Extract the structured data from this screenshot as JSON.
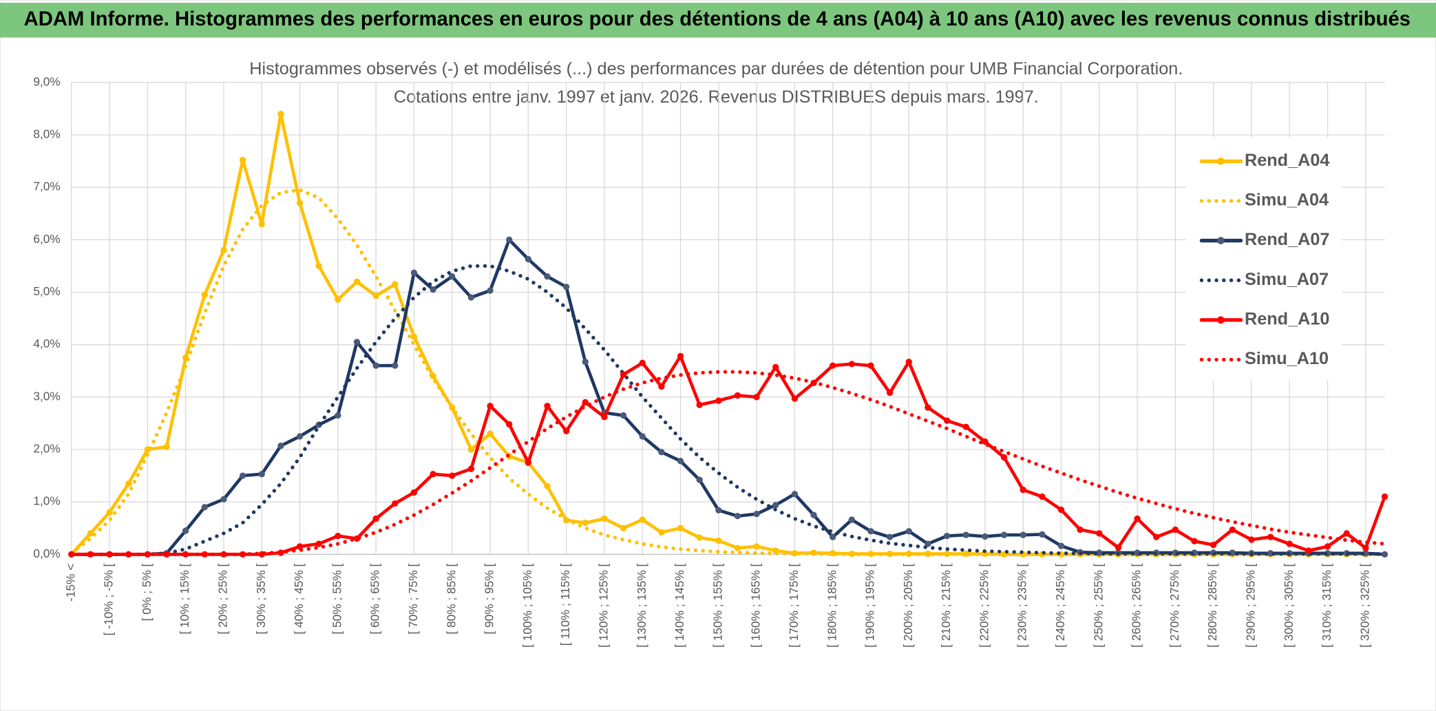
{
  "header": {
    "title": "ADAM Informe. Histogrammes des performances en euros pour des détentions de 4 ans (A04) à 10 ans (A10) avec les revenus connus distribués"
  },
  "chart_data": {
    "type": "line",
    "title": "Histogrammes observés (-) et modélisés (...) des performances par durées de détention pour UMB Financial Corporation.",
    "subtitle": "Cotations entre janv. 1997 et janv. 2026.  Revenus DISTRIBUES depuis mars. 1997.",
    "categories": [
      "-15% <",
      null,
      "[ -10% ; -5% [",
      null,
      "[ 0% ; 5% [",
      null,
      "[ 10% ; 15% [",
      null,
      "[ 20% ; 25% [",
      null,
      "[ 30% ; 35% [",
      null,
      "[ 40% ; 45% [",
      null,
      "[ 50% ; 55% [",
      null,
      "[ 60% ; 65% [",
      null,
      "[ 70% ; 75% [",
      null,
      "[ 80% ; 85% [",
      null,
      "[ 90% ; 95% [",
      null,
      "[ 100% ; 105% [",
      null,
      "[ 110% ; 115% [",
      null,
      "[ 120% ; 125% [",
      null,
      "[ 130% ; 135% [",
      null,
      "[ 140% ; 145% [",
      null,
      "[ 150% ; 155% [",
      null,
      "[ 160% ; 165% [",
      null,
      "[ 170% ; 175% [",
      null,
      "[ 180% ; 185% [",
      null,
      "[ 190% ; 195% [",
      null,
      "[ 200% ; 205% [",
      null,
      "[ 210% ; 215% [",
      null,
      "[ 220% ; 225% [",
      null,
      "[ 230% ; 235% [",
      null,
      "[ 240% ; 245% [",
      null,
      "[ 250% ; 255% [",
      null,
      "[ 260% ; 265% [",
      null,
      "[ 270% ; 275% [",
      null,
      "[ 280% ; 285% [",
      null,
      "[ 290% ; 295% [",
      null,
      "[ 300% ; 305% [",
      null,
      "[ 310% ; 315% [",
      null,
      "[ 320% ; 325% [",
      null
    ],
    "ylim": [
      0,
      9
    ],
    "yticks": [
      {
        "value": 0,
        "label": "0,0%"
      },
      {
        "value": 1,
        "label": "1,0%"
      },
      {
        "value": 2,
        "label": "2,0%"
      },
      {
        "value": 3,
        "label": "3,0%"
      },
      {
        "value": 4,
        "label": "4,0%"
      },
      {
        "value": 5,
        "label": "5,0%"
      },
      {
        "value": 6,
        "label": "6,0%"
      },
      {
        "value": 7,
        "label": "7,0%"
      },
      {
        "value": 8,
        "label": "8,0%"
      },
      {
        "value": 9,
        "label": "9,0%"
      }
    ],
    "grid": true,
    "legend": "right",
    "series": [
      {
        "name": "Rend_A04",
        "color": "#FFC000",
        "style": "solid",
        "marker_color": "#FFC000",
        "values": [
          0,
          0.4,
          0.8,
          1.35,
          2.0,
          2.05,
          3.75,
          4.95,
          5.8,
          7.52,
          6.3,
          8.4,
          6.7,
          5.5,
          4.86,
          5.2,
          4.93,
          5.15,
          4.15,
          3.4,
          2.8,
          2.0,
          2.3,
          1.87,
          1.75,
          1.3,
          0.65,
          0.6,
          0.68,
          0.5,
          0.66,
          0.42,
          0.5,
          0.32,
          0.26,
          0.12,
          0.15,
          0.07,
          0.02,
          0.03,
          0.02,
          0.01,
          0.01,
          0.01,
          0.01,
          0.01,
          0.01,
          0.01,
          0.01,
          0,
          0,
          0,
          0,
          0,
          0,
          0,
          0,
          0,
          0,
          0,
          0,
          0,
          0,
          0,
          0,
          0,
          0,
          0,
          0,
          0
        ]
      },
      {
        "name": "Simu_A04",
        "color": "#FFC000",
        "style": "dotted",
        "values": [
          0.02,
          0.3,
          0.65,
          1.15,
          1.9,
          2.7,
          3.6,
          4.6,
          5.5,
          6.2,
          6.65,
          6.9,
          6.95,
          6.8,
          6.4,
          5.9,
          5.3,
          4.65,
          4.0,
          3.35,
          2.8,
          2.3,
          1.85,
          1.45,
          1.15,
          0.88,
          0.67,
          0.5,
          0.37,
          0.28,
          0.2,
          0.14,
          0.1,
          0.07,
          0.05,
          0.035,
          0.025,
          0.017,
          0.012,
          0.008,
          0.005,
          0,
          0,
          0,
          0,
          0,
          0,
          0,
          0,
          0,
          0,
          0,
          0,
          0,
          0,
          0,
          0,
          0,
          0,
          0,
          0,
          0,
          0,
          0,
          0,
          0,
          0,
          0,
          0,
          0
        ]
      },
      {
        "name": "Rend_A07",
        "color": "#1F3864",
        "style": "solid",
        "marker_color": "#4A5A78",
        "values": [
          0,
          0,
          0,
          0,
          0,
          0.02,
          0.45,
          0.9,
          1.05,
          1.5,
          1.53,
          2.07,
          2.25,
          2.47,
          2.65,
          4.05,
          3.6,
          3.6,
          5.37,
          5.05,
          5.3,
          4.9,
          5.03,
          6.0,
          5.63,
          5.3,
          5.1,
          3.67,
          2.7,
          2.65,
          2.25,
          1.95,
          1.78,
          1.42,
          0.84,
          0.73,
          0.77,
          0.94,
          1.15,
          0.75,
          0.33,
          0.66,
          0.44,
          0.33,
          0.44,
          0.2,
          0.35,
          0.37,
          0.34,
          0.37,
          0.37,
          0.38,
          0.16,
          0.04,
          0.03,
          0.03,
          0.03,
          0.03,
          0.03,
          0.03,
          0.03,
          0.03,
          0.02,
          0.02,
          0.02,
          0.02,
          0.02,
          0.02,
          0.02,
          0
        ]
      },
      {
        "name": "Simu_A07",
        "color": "#1F3864",
        "style": "dotted",
        "values": [
          0,
          0,
          0,
          0,
          0,
          0.02,
          0.1,
          0.25,
          0.4,
          0.6,
          0.95,
          1.35,
          1.85,
          2.45,
          3.0,
          3.55,
          4.05,
          4.5,
          4.9,
          5.2,
          5.4,
          5.5,
          5.5,
          5.4,
          5.25,
          5.0,
          4.7,
          4.3,
          3.9,
          3.45,
          3.0,
          2.6,
          2.2,
          1.85,
          1.55,
          1.28,
          1.05,
          0.85,
          0.68,
          0.54,
          0.43,
          0.34,
          0.27,
          0.21,
          0.17,
          0.13,
          0.1,
          0.08,
          0.06,
          0.05,
          0.04,
          0.03,
          0.02,
          0.02,
          0.01,
          0.01,
          0.01,
          0.01,
          0.01,
          0.01,
          0.01,
          0.01,
          0.01,
          0.01,
          0.01,
          0.01,
          0.01,
          0.01,
          0.01,
          0.01
        ]
      },
      {
        "name": "Rend_A10",
        "color": "#FF0000",
        "style": "solid",
        "marker_color": "#FF0000",
        "values": [
          0,
          0,
          0,
          0,
          0,
          0,
          0,
          0,
          0,
          0,
          0,
          0.03,
          0.15,
          0.2,
          0.35,
          0.3,
          0.68,
          0.97,
          1.18,
          1.53,
          1.5,
          1.63,
          2.83,
          2.48,
          1.75,
          2.83,
          2.35,
          2.9,
          2.62,
          3.43,
          3.65,
          3.2,
          3.78,
          2.85,
          2.93,
          3.03,
          3.0,
          3.57,
          2.97,
          3.27,
          3.6,
          3.63,
          3.6,
          3.08,
          3.67,
          2.8,
          2.55,
          2.43,
          2.15,
          1.85,
          1.23,
          1.1,
          0.85,
          0.47,
          0.4,
          0.13,
          0.68,
          0.33,
          0.47,
          0.25,
          0.18,
          0.47,
          0.28,
          0.33,
          0.2,
          0.07,
          0.15,
          0.4,
          0.12,
          1.1
        ]
      },
      {
        "name": "Simu_A10",
        "color": "#FF0000",
        "style": "dotted",
        "values": [
          0,
          0,
          0,
          0,
          0,
          0,
          0,
          0,
          0,
          0,
          0.02,
          0.04,
          0.08,
          0.13,
          0.2,
          0.3,
          0.42,
          0.57,
          0.75,
          0.95,
          1.17,
          1.4,
          1.65,
          1.9,
          2.15,
          2.4,
          2.62,
          2.82,
          3.0,
          3.15,
          3.27,
          3.36,
          3.42,
          3.46,
          3.48,
          3.48,
          3.46,
          3.42,
          3.36,
          3.28,
          3.18,
          3.07,
          2.95,
          2.82,
          2.68,
          2.54,
          2.4,
          2.25,
          2.1,
          1.96,
          1.82,
          1.68,
          1.55,
          1.42,
          1.3,
          1.18,
          1.07,
          0.97,
          0.87,
          0.78,
          0.7,
          0.62,
          0.55,
          0.48,
          0.42,
          0.37,
          0.32,
          0.27,
          0.23,
          0.2
        ]
      }
    ]
  }
}
